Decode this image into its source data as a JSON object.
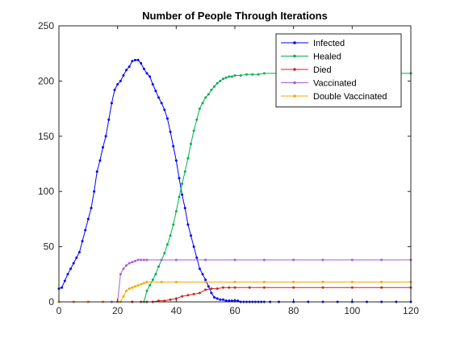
{
  "chart_data": {
    "type": "line",
    "title": "Number of People Through Iterations",
    "xlabel": "",
    "ylabel": "",
    "xlim": [
      0,
      120
    ],
    "ylim": [
      0,
      250
    ],
    "xticks": [
      0,
      20,
      40,
      60,
      80,
      100,
      120
    ],
    "yticks": [
      0,
      50,
      100,
      150,
      200,
      250
    ],
    "grid": false,
    "legend_position": "top-right",
    "series": [
      {
        "name": "Infected",
        "color": "#0000ff",
        "x": [
          0,
          1,
          2,
          3,
          4,
          5,
          6,
          7,
          8,
          9,
          10,
          11,
          12,
          13,
          14,
          15,
          16,
          17,
          18,
          19,
          20,
          21,
          22,
          23,
          24,
          25,
          26,
          27,
          28,
          29,
          30,
          31,
          32,
          33,
          34,
          35,
          36,
          37,
          38,
          39,
          40,
          41,
          42,
          43,
          44,
          45,
          46,
          47,
          48,
          49,
          50,
          51,
          52,
          53,
          54,
          55,
          56,
          57,
          58,
          59,
          60,
          61,
          62,
          63,
          64,
          65,
          66,
          67,
          68,
          69,
          70,
          72,
          75,
          80,
          85,
          90,
          95,
          100,
          105,
          110,
          115,
          120
        ],
        "y": [
          12,
          13,
          19,
          25,
          30,
          35,
          40,
          45,
          55,
          65,
          75,
          85,
          100,
          118,
          128,
          140,
          150,
          165,
          180,
          192,
          197,
          200,
          205,
          210,
          213,
          218,
          219,
          219,
          216,
          211,
          207,
          204,
          197,
          191,
          185,
          180,
          174,
          166,
          154,
          141,
          128,
          112,
          97,
          85,
          70,
          60,
          50,
          40,
          30,
          25,
          20,
          14,
          8,
          4,
          3,
          2,
          2,
          1,
          1,
          1,
          1,
          1,
          0,
          0,
          0,
          0,
          0,
          0,
          0,
          0,
          0,
          0,
          0,
          0,
          0,
          0,
          0,
          0,
          0,
          0,
          0,
          0
        ]
      },
      {
        "name": "Healed",
        "color": "#00b050",
        "x": [
          0,
          5,
          10,
          15,
          20,
          25,
          29,
          30,
          31,
          32,
          33,
          34,
          35,
          36,
          37,
          38,
          39,
          40,
          41,
          42,
          43,
          44,
          45,
          46,
          47,
          48,
          49,
          50,
          51,
          52,
          53,
          54,
          55,
          56,
          57,
          58,
          59,
          60,
          62,
          64,
          66,
          68,
          70,
          75,
          80,
          85,
          90,
          95,
          100,
          105,
          110,
          115,
          120
        ],
        "y": [
          0,
          0,
          0,
          0,
          0,
          0,
          0,
          10,
          15,
          20,
          25,
          32,
          38,
          44,
          52,
          60,
          70,
          82,
          95,
          107,
          118,
          130,
          143,
          155,
          165,
          175,
          180,
          185,
          188,
          192,
          195,
          198,
          200,
          202,
          203,
          204,
          204,
          205,
          205,
          206,
          206,
          206,
          207,
          207,
          207,
          207,
          207,
          207,
          207,
          207,
          207,
          207,
          207
        ]
      },
      {
        "name": "Died",
        "color": "#d62020",
        "x": [
          0,
          5,
          10,
          15,
          20,
          25,
          28,
          30,
          32,
          34,
          36,
          38,
          40,
          42,
          44,
          46,
          48,
          50,
          52,
          54,
          56,
          58,
          60,
          65,
          70,
          80,
          90,
          100,
          110,
          120
        ],
        "y": [
          0,
          0,
          0,
          0,
          0,
          0,
          0,
          0,
          0,
          1,
          1,
          2,
          3,
          5,
          6,
          7,
          8,
          11,
          12,
          12,
          13,
          13,
          13,
          13,
          13,
          13,
          13,
          13,
          13,
          13
        ]
      },
      {
        "name": "Vaccinated",
        "color": "#a95cd6",
        "x": [
          0,
          5,
          10,
          15,
          18,
          20,
          21,
          22,
          23,
          24,
          25,
          26,
          27,
          28,
          29,
          30,
          35,
          40,
          50,
          60,
          70,
          80,
          90,
          100,
          110,
          120
        ],
        "y": [
          0,
          0,
          0,
          0,
          0,
          0,
          25,
          30,
          33,
          35,
          36,
          37,
          38,
          38,
          38,
          38,
          38,
          38,
          38,
          38,
          38,
          38,
          38,
          38,
          38,
          38
        ]
      },
      {
        "name": "Double Vaccinated",
        "color": "#f5a800",
        "x": [
          0,
          5,
          10,
          15,
          20,
          21,
          22,
          23,
          24,
          25,
          26,
          27,
          28,
          29,
          30,
          35,
          40,
          50,
          60,
          70,
          80,
          90,
          100,
          110,
          120
        ],
        "y": [
          0,
          0,
          0,
          0,
          0,
          0,
          5,
          10,
          12,
          13,
          14,
          15,
          16,
          17,
          18,
          18,
          18,
          18,
          18,
          18,
          18,
          18,
          18,
          18,
          18
        ]
      }
    ]
  }
}
